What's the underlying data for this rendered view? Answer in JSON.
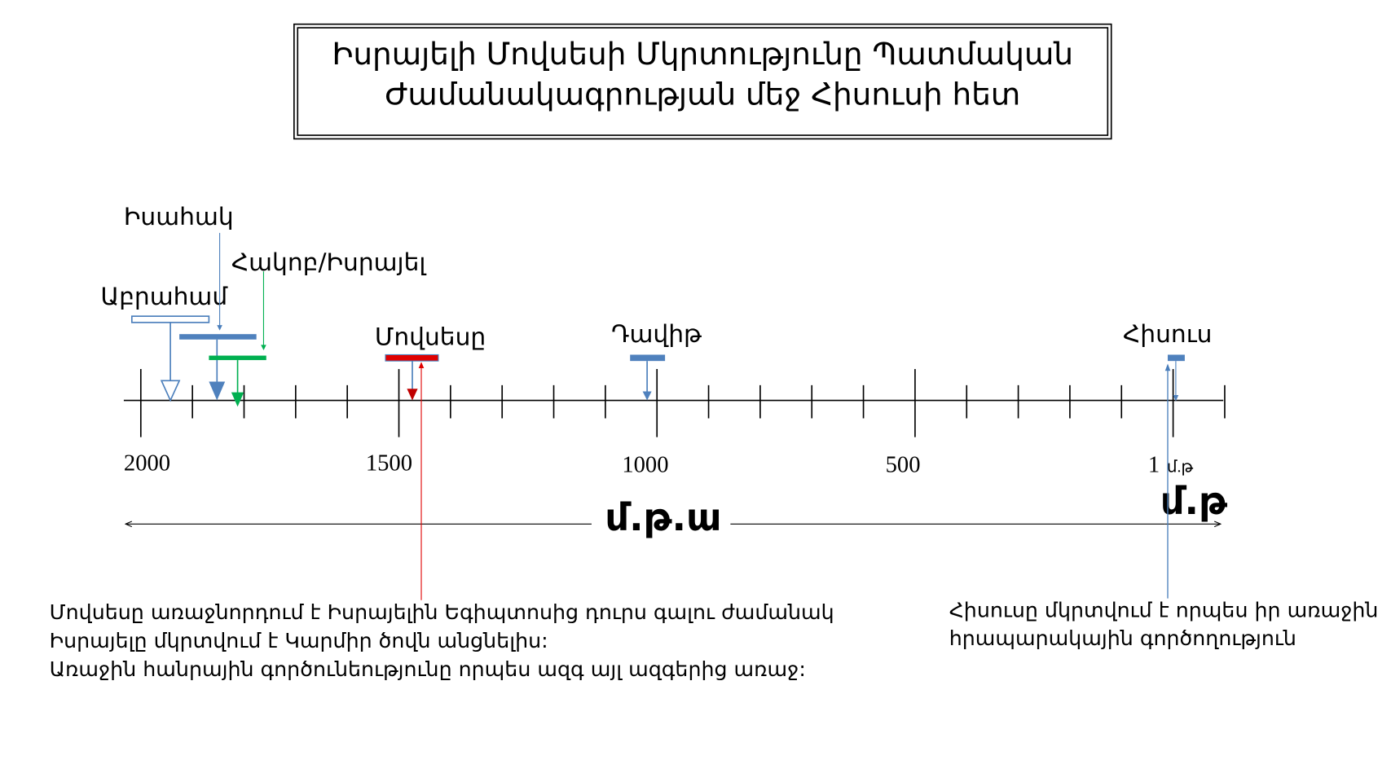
{
  "title": {
    "lines": [
      "Իսրայելի Մովսեսի Մկրտությունը Պատմական",
      "Ժամանակագրության մեջ Հիսուսի հետ"
    ]
  },
  "figures": {
    "abraham": "Աբրահամ",
    "isaac": "Իսահակ",
    "jacob": "Հակոբ/Իսրայել",
    "moses": "Մովսեսը",
    "david": "Դավիթ",
    "jesus": "Հիսուս"
  },
  "axis": {
    "ticks": [
      "2000",
      "1500",
      "1000",
      "500",
      "1",
      "մ.թ"
    ]
  },
  "eras": {
    "bc": "մ.թ.ա",
    "ad": "մ.թ"
  },
  "notes": {
    "moses": [
      "Մովսեսը առաջնորդում է Իսրայելին Եգիպտոսից դուրս գալու ժամանակ",
      "Իսրայելը մկրտվում է Կարմիր ծովն անցնելիս:",
      "Առաջին հանրային գործունեությունը որպես ազգ այլ ազգերից առաջ:"
    ],
    "jesus": [
      "Հիսուսը մկրտվում է որպես իր առաջին",
      "հրապարակային գործողություն"
    ]
  }
}
